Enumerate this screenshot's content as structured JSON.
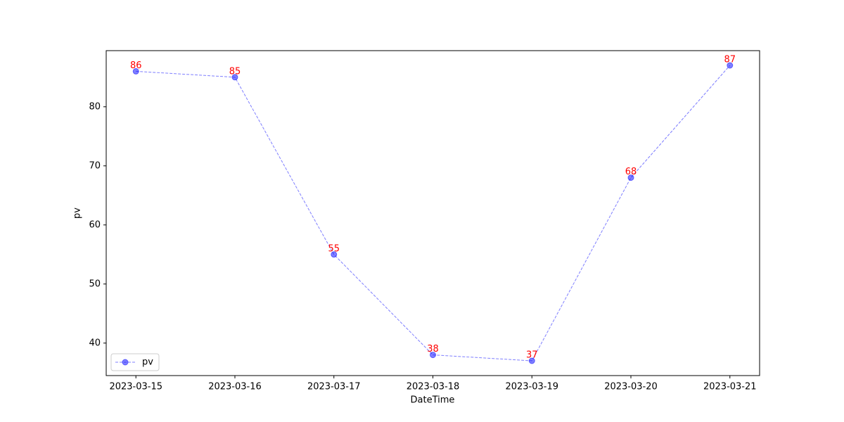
{
  "chart_data": {
    "type": "line",
    "x": [
      "2023-03-15",
      "2023-03-16",
      "2023-03-17",
      "2023-03-18",
      "2023-03-19",
      "2023-03-20",
      "2023-03-21"
    ],
    "series": [
      {
        "name": "pv",
        "color": "#0000ff",
        "values": [
          86,
          85,
          55,
          38,
          37,
          68,
          87
        ]
      }
    ],
    "x_label": "DateTime",
    "y_label": "pv",
    "ylim": [
      34.5,
      89.5
    ],
    "yticks": [
      40,
      50,
      60,
      70,
      80
    ],
    "label_color": "#ff0000",
    "legend": "lower left",
    "grid": false
  }
}
